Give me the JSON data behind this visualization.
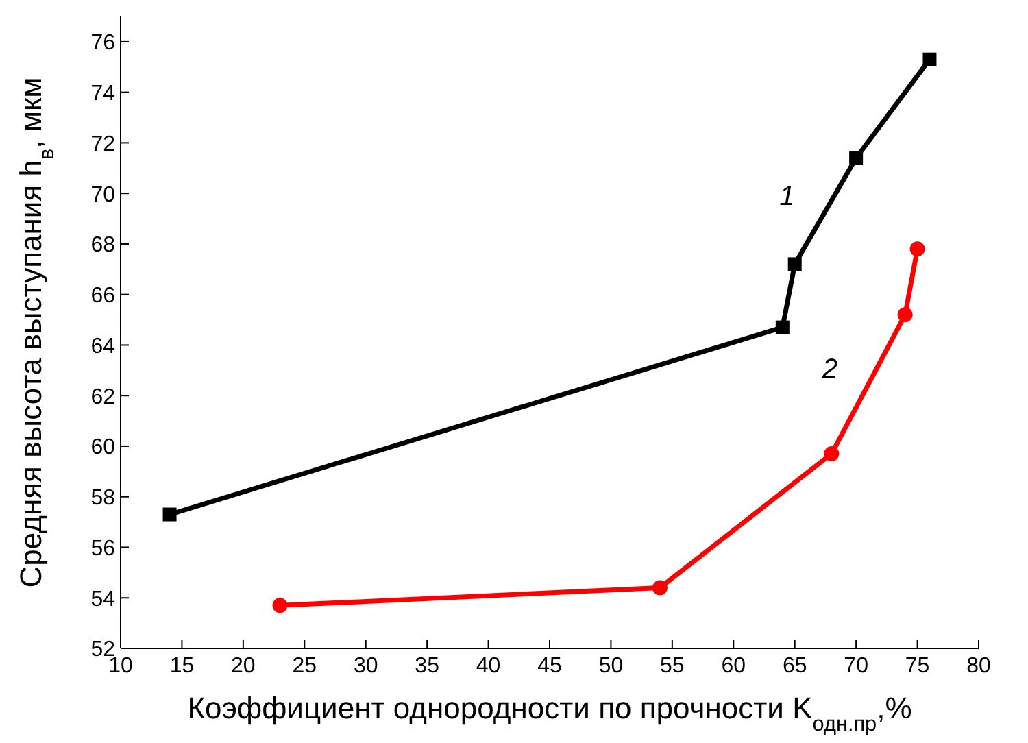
{
  "chart_data": {
    "type": "line",
    "xlabel": "Коэффициент однородности по прочности K$_{одн.пр}$,%",
    "ylabel": "Средняя высота выступания h$_{в}$, мкм",
    "xlim": [
      10,
      80
    ],
    "xticks": [
      10,
      15,
      20,
      25,
      30,
      35,
      40,
      45,
      50,
      55,
      60,
      65,
      70,
      75,
      80
    ],
    "ylim": [
      52,
      77
    ],
    "yticks": [
      52,
      54,
      56,
      58,
      60,
      62,
      64,
      66,
      68,
      70,
      72,
      74,
      76
    ],
    "grid": false,
    "legend": false,
    "series": [
      {
        "name": "1",
        "color": "#000000",
        "marker": "square",
        "x": [
          14,
          64,
          65,
          70,
          76
        ],
        "values": [
          57.3,
          64.7,
          67.2,
          71.4,
          75.3
        ]
      },
      {
        "name": "2",
        "color": "#ff0000",
        "marker": "circle",
        "x": [
          23,
          54,
          68,
          74,
          75
        ],
        "values": [
          53.7,
          54.4,
          59.7,
          65.2,
          67.8
        ]
      }
    ]
  }
}
